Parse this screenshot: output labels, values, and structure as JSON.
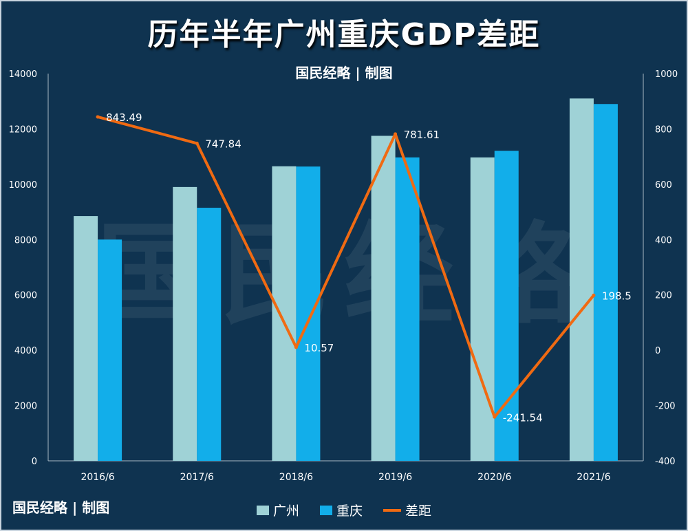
{
  "header": {
    "title": "历年半年广州重庆GDP差距",
    "subtitle": "国民经略 | 制图",
    "watermark": "国民经略",
    "credit": "国民经略 | 制图"
  },
  "colors": {
    "guangzhou": "#9fd2d6",
    "chongqing": "#12aeea",
    "gap": "#f06a12",
    "background": "#0f3350"
  },
  "chart_data": {
    "type": "bar",
    "title": "历年半年广州重庆GDP差距",
    "categories": [
      "2016/6",
      "2017/6",
      "2018/6",
      "2019/6",
      "2020/6",
      "2021/6"
    ],
    "series": [
      {
        "name": "广州",
        "type": "bar",
        "axis": "left",
        "values": [
          8850,
          9900,
          10650,
          11750,
          10970,
          13100
        ]
      },
      {
        "name": "重庆",
        "type": "bar",
        "axis": "left",
        "values": [
          8000,
          9150,
          10640,
          10970,
          11210,
          12900
        ]
      },
      {
        "name": "差距",
        "type": "line",
        "axis": "right",
        "values": [
          843.49,
          747.84,
          10.57,
          781.61,
          -241.54,
          198.5
        ]
      }
    ],
    "data_labels": [
      "843.49",
      "747.84",
      "10.57",
      "781.61",
      "-241.54",
      "198.5"
    ],
    "y_left": {
      "min": 0,
      "max": 14000,
      "ticks": [
        "0",
        "2000",
        "4000",
        "6000",
        "8000",
        "10000",
        "12000",
        "14000"
      ]
    },
    "y_right": {
      "min": -400,
      "max": 1000,
      "ticks": [
        "-400",
        "-200",
        "0",
        "200",
        "400",
        "600",
        "800",
        "1000"
      ]
    },
    "legend_position": "bottom",
    "grid": false
  },
  "legend": {
    "items": [
      {
        "label": "广州"
      },
      {
        "label": "重庆"
      },
      {
        "label": "差距"
      }
    ]
  }
}
